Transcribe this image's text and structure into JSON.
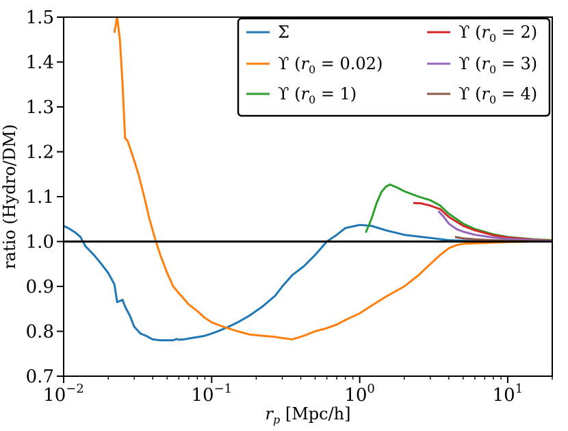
{
  "chart_data": {
    "type": "line",
    "xscale": "log",
    "xlim": [
      0.01,
      20
    ],
    "ylim": [
      0.7,
      1.5
    ],
    "xlabel": "r_p [Mpc/h]",
    "ylabel": "ratio (Hydro/DM)",
    "x_ticks": [
      {
        "value": 0.01,
        "base": "10",
        "exp": "−2"
      },
      {
        "value": 0.1,
        "base": "10",
        "exp": "−1"
      },
      {
        "value": 1,
        "base": "10",
        "exp": "0"
      },
      {
        "value": 10,
        "base": "10",
        "exp": "1"
      }
    ],
    "y_ticks": [
      0.7,
      0.8,
      0.9,
      1.0,
      1.1,
      1.2,
      1.3,
      1.4,
      1.5
    ],
    "y_tick_labels": [
      "0.7",
      "0.8",
      "0.9",
      "1.0",
      "1.1",
      "1.2",
      "1.3",
      "1.4",
      "1.5"
    ],
    "reference_line": 1.0,
    "legend_position": "top-right",
    "series": [
      {
        "name": "Σ",
        "color": "#1f77b4",
        "legend": {
          "sym": "Σ",
          "sub": "",
          "tail": ""
        },
        "x": [
          0.01,
          0.011,
          0.012,
          0.013,
          0.014,
          0.016,
          0.018,
          0.02,
          0.022,
          0.023,
          0.025,
          0.026,
          0.028,
          0.03,
          0.033,
          0.036,
          0.04,
          0.045,
          0.05,
          0.055,
          0.058,
          0.06,
          0.065,
          0.07,
          0.08,
          0.09,
          0.1,
          0.11,
          0.13,
          0.15,
          0.18,
          0.22,
          0.27,
          0.3,
          0.35,
          0.42,
          0.5,
          0.6,
          0.7,
          0.8,
          1.0,
          1.2,
          1.5,
          2.0,
          3.0,
          4.0,
          5.0,
          7.0,
          10.0,
          15.0,
          20.0
        ],
        "y": [
          1.035,
          1.028,
          1.02,
          1.01,
          0.99,
          0.97,
          0.95,
          0.93,
          0.905,
          0.865,
          0.87,
          0.855,
          0.835,
          0.81,
          0.795,
          0.79,
          0.782,
          0.78,
          0.78,
          0.78,
          0.783,
          0.781,
          0.782,
          0.784,
          0.787,
          0.79,
          0.795,
          0.8,
          0.81,
          0.82,
          0.835,
          0.855,
          0.88,
          0.9,
          0.925,
          0.945,
          0.97,
          1.0,
          1.015,
          1.03,
          1.037,
          1.035,
          1.025,
          1.015,
          1.008,
          1.003,
          1.002,
          1.0,
          1.0,
          1.0,
          1.0
        ]
      },
      {
        "name": "ϒ (r0 = 0.02)",
        "color": "#ff7f0e",
        "legend": {
          "sym": "ϒ (",
          "sub": "0",
          "tail": " = 0.02)"
        },
        "x": [
          0.022,
          0.023,
          0.024,
          0.025,
          0.026,
          0.027,
          0.028,
          0.03,
          0.032,
          0.035,
          0.038,
          0.042,
          0.045,
          0.05,
          0.055,
          0.06,
          0.07,
          0.08,
          0.09,
          0.1,
          0.12,
          0.15,
          0.18,
          0.22,
          0.26,
          0.3,
          0.35,
          0.42,
          0.5,
          0.6,
          0.7,
          0.8,
          1.0,
          1.2,
          1.5,
          2.0,
          2.5,
          3.0,
          3.5,
          4.0,
          4.5,
          5.0,
          7.0,
          10.0,
          15.0,
          20.0
        ],
        "y": [
          1.465,
          1.5,
          1.45,
          1.35,
          1.23,
          1.225,
          1.21,
          1.18,
          1.15,
          1.1,
          1.05,
          1.0,
          0.97,
          0.93,
          0.9,
          0.885,
          0.86,
          0.845,
          0.83,
          0.82,
          0.81,
          0.8,
          0.793,
          0.79,
          0.788,
          0.785,
          0.782,
          0.79,
          0.8,
          0.807,
          0.815,
          0.825,
          0.84,
          0.857,
          0.877,
          0.9,
          0.925,
          0.95,
          0.97,
          0.985,
          0.992,
          0.995,
          0.997,
          0.999,
          1.0,
          1.0
        ]
      },
      {
        "name": "ϒ (r0 = 1)",
        "color": "#2ca02c",
        "legend": {
          "sym": "ϒ (",
          "sub": "0",
          "tail": " = 1)"
        },
        "x": [
          1.1,
          1.2,
          1.3,
          1.4,
          1.5,
          1.6,
          1.8,
          2.0,
          2.5,
          3.0,
          3.5,
          4.0,
          5.0,
          6.0,
          8.0,
          10.0,
          15.0,
          20.0
        ],
        "y": [
          1.02,
          1.05,
          1.085,
          1.11,
          1.122,
          1.127,
          1.12,
          1.112,
          1.1,
          1.092,
          1.08,
          1.062,
          1.04,
          1.028,
          1.016,
          1.01,
          1.005,
          1.003
        ]
      },
      {
        "name": "ϒ (r0 = 2)",
        "color": "#d62728",
        "legend": {
          "sym": "ϒ (",
          "sub": "0",
          "tail": " = 2)"
        },
        "x": [
          2.3,
          2.6,
          3.0,
          3.5,
          4.0,
          5.0,
          6.0,
          8.0,
          10.0,
          15.0,
          20.0
        ],
        "y": [
          1.086,
          1.085,
          1.08,
          1.072,
          1.055,
          1.035,
          1.025,
          1.014,
          1.009,
          1.004,
          1.002
        ]
      },
      {
        "name": "ϒ (r0 = 3)",
        "color": "#9467bd",
        "legend": {
          "sym": "ϒ (",
          "sub": "0",
          "tail": " = 3)"
        },
        "x": [
          3.4,
          3.7,
          4.0,
          4.5,
          5.0,
          6.0,
          8.0,
          10.0,
          15.0,
          20.0
        ],
        "y": [
          1.068,
          1.055,
          1.04,
          1.028,
          1.022,
          1.015,
          1.009,
          1.006,
          1.003,
          1.001
        ]
      },
      {
        "name": "ϒ (r0 = 4)",
        "color": "#8c564b",
        "legend": {
          "sym": "ϒ (",
          "sub": "0",
          "tail": " = 4)"
        },
        "x": [
          4.4,
          5.0,
          6.0,
          8.0,
          10.0,
          15.0,
          20.0
        ],
        "y": [
          1.01,
          1.007,
          1.005,
          1.003,
          1.002,
          1.001,
          1.0
        ]
      }
    ]
  }
}
